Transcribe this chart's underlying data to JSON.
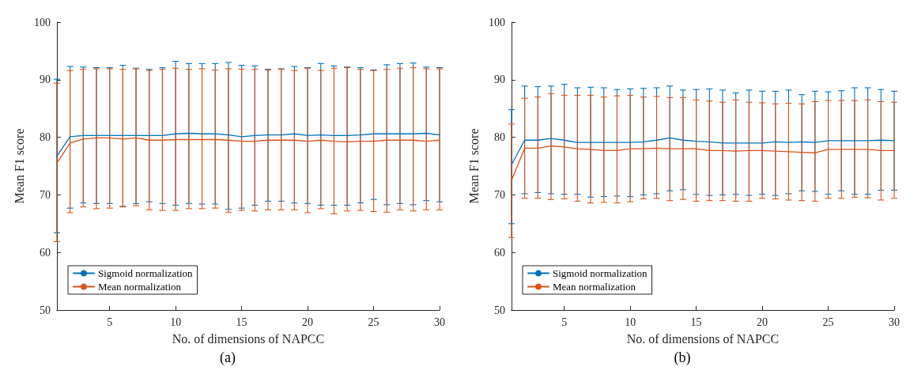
{
  "chart_data": [
    {
      "type": "line",
      "title": "(a)",
      "xlabel": "No. of dimensions of NAPCC",
      "ylabel": "Mean F1 score",
      "x": [
        1,
        2,
        3,
        4,
        5,
        6,
        7,
        8,
        9,
        10,
        11,
        12,
        13,
        14,
        15,
        16,
        17,
        18,
        19,
        20,
        21,
        22,
        23,
        24,
        25,
        26,
        27,
        28,
        29,
        30
      ],
      "series": [
        {
          "name": "Sigmoid normalization",
          "color": "#0072bd",
          "values": [
            76.7,
            80.1,
            80.3,
            80.3,
            80.3,
            80.3,
            80.3,
            80.3,
            80.3,
            80.6,
            80.7,
            80.6,
            80.6,
            80.4,
            80.1,
            80.3,
            80.4,
            80.4,
            80.6,
            80.3,
            80.4,
            80.3,
            80.3,
            80.4,
            80.6,
            80.6,
            80.6,
            80.6,
            80.7,
            80.4
          ],
          "errors": [
            [
              63.4,
              90.1
            ],
            [
              67.7,
              92.3
            ],
            [
              68.6,
              92.2
            ],
            [
              68.5,
              92.1
            ],
            [
              68.5,
              92.1
            ],
            [
              68.0,
              92.5
            ],
            [
              68.5,
              92.0
            ],
            [
              68.8,
              91.8
            ],
            [
              68.5,
              92.1
            ],
            [
              68.2,
              93.2
            ],
            [
              68.5,
              92.8
            ],
            [
              68.4,
              92.8
            ],
            [
              68.4,
              92.8
            ],
            [
              67.5,
              93.0
            ],
            [
              67.7,
              92.5
            ],
            [
              68.2,
              92.4
            ],
            [
              68.9,
              91.8
            ],
            [
              68.9,
              91.9
            ],
            [
              68.6,
              92.3
            ],
            [
              68.5,
              92.1
            ],
            [
              68.2,
              92.8
            ],
            [
              68.2,
              92.4
            ],
            [
              68.2,
              92.2
            ],
            [
              68.6,
              92.1
            ],
            [
              69.2,
              91.7
            ],
            [
              68.3,
              92.6
            ],
            [
              68.5,
              92.8
            ],
            [
              68.3,
              92.9
            ],
            [
              69.0,
              92.2
            ],
            [
              68.8,
              92.1
            ]
          ]
        },
        {
          "name": "Mean normalization",
          "color": "#d95319",
          "values": [
            75.5,
            79.0,
            79.7,
            79.9,
            79.9,
            79.7,
            79.9,
            79.5,
            79.5,
            79.6,
            79.6,
            79.6,
            79.6,
            79.5,
            79.3,
            79.3,
            79.5,
            79.5,
            79.5,
            79.3,
            79.5,
            79.3,
            79.2,
            79.3,
            79.3,
            79.5,
            79.5,
            79.5,
            79.3,
            79.5
          ],
          "errors": [
            [
              61.9,
              89.4
            ],
            [
              66.9,
              91.6
            ],
            [
              67.9,
              91.8
            ],
            [
              67.6,
              91.9
            ],
            [
              67.7,
              91.9
            ],
            [
              67.9,
              91.8
            ],
            [
              68.1,
              91.9
            ],
            [
              67.4,
              91.6
            ],
            [
              67.3,
              91.8
            ],
            [
              67.3,
              92.0
            ],
            [
              67.6,
              91.8
            ],
            [
              67.6,
              91.9
            ],
            [
              67.7,
              91.7
            ],
            [
              67.0,
              91.9
            ],
            [
              67.3,
              91.8
            ],
            [
              67.2,
              91.8
            ],
            [
              67.4,
              91.7
            ],
            [
              67.4,
              91.8
            ],
            [
              67.4,
              91.6
            ],
            [
              66.9,
              92.0
            ],
            [
              67.6,
              91.6
            ],
            [
              66.7,
              92.0
            ],
            [
              67.2,
              92.1
            ],
            [
              67.3,
              91.8
            ],
            [
              67.1,
              91.6
            ],
            [
              67.0,
              91.8
            ],
            [
              67.4,
              92.0
            ],
            [
              67.2,
              92.1
            ],
            [
              67.4,
              91.9
            ],
            [
              67.4,
              91.9
            ]
          ]
        }
      ],
      "xlim": [
        1,
        30
      ],
      "xticks": [
        5,
        10,
        15,
        20,
        25,
        30
      ],
      "ylim": [
        50,
        100
      ],
      "yticks": [
        50,
        60,
        70,
        80,
        90,
        100
      ],
      "grid": false,
      "legend": "bottom left",
      "marker": "none",
      "line_style": "solid"
    },
    {
      "type": "line",
      "title": "(b)",
      "xlabel": "No. of dimensions of NAPCC",
      "ylabel": "Mean F1 score",
      "x": [
        1,
        2,
        3,
        4,
        5,
        6,
        7,
        8,
        9,
        10,
        11,
        12,
        13,
        14,
        15,
        16,
        17,
        18,
        19,
        20,
        21,
        22,
        23,
        24,
        25,
        26,
        27,
        28,
        29,
        30
      ],
      "series": [
        {
          "name": "Sigmoid normalization",
          "color": "#0072bd",
          "values": [
            75.2,
            79.5,
            79.5,
            79.8,
            79.5,
            79.1,
            79.1,
            79.1,
            79.1,
            79.1,
            79.2,
            79.5,
            79.9,
            79.5,
            79.3,
            79.2,
            79.0,
            79.0,
            79.0,
            79.0,
            79.2,
            79.1,
            79.2,
            79.1,
            79.4,
            79.4,
            79.4,
            79.4,
            79.5,
            79.4
          ],
          "errors": [
            [
              65.0,
              84.8
            ],
            [
              70.2,
              88.9
            ],
            [
              70.4,
              88.8
            ],
            [
              70.2,
              88.9
            ],
            [
              70.1,
              89.2
            ],
            [
              70.1,
              88.6
            ],
            [
              69.6,
              88.7
            ],
            [
              69.7,
              88.6
            ],
            [
              69.8,
              88.3
            ],
            [
              69.7,
              88.4
            ],
            [
              70.0,
              88.5
            ],
            [
              70.2,
              88.6
            ],
            [
              70.7,
              88.9
            ],
            [
              70.9,
              88.2
            ],
            [
              70.1,
              88.3
            ],
            [
              69.9,
              88.4
            ],
            [
              70.0,
              88.2
            ],
            [
              70.1,
              87.7
            ],
            [
              69.9,
              88.2
            ],
            [
              70.1,
              88.0
            ],
            [
              69.9,
              88.0
            ],
            [
              70.2,
              88.2
            ],
            [
              70.7,
              87.4
            ],
            [
              70.6,
              88.0
            ],
            [
              70.1,
              87.9
            ],
            [
              70.7,
              88.1
            ],
            [
              70.1,
              88.6
            ],
            [
              70.1,
              88.6
            ],
            [
              70.8,
              88.3
            ],
            [
              70.8,
              88.0
            ]
          ]
        },
        {
          "name": "Mean normalization",
          "color": "#d95319",
          "values": [
            72.5,
            78.1,
            78.1,
            78.5,
            78.3,
            78.0,
            77.9,
            77.7,
            77.7,
            78.0,
            78.0,
            78.1,
            78.0,
            78.0,
            78.0,
            77.7,
            77.7,
            77.6,
            77.7,
            77.7,
            77.6,
            77.5,
            77.4,
            77.3,
            77.9,
            77.9,
            77.9,
            77.9,
            77.7,
            77.7
          ],
          "errors": [
            [
              62.6,
              82.3
            ],
            [
              69.4,
              86.8
            ],
            [
              69.4,
              87.0
            ],
            [
              69.2,
              87.6
            ],
            [
              69.3,
              87.3
            ],
            [
              68.9,
              87.3
            ],
            [
              68.6,
              87.3
            ],
            [
              68.7,
              87.0
            ],
            [
              68.6,
              87.2
            ],
            [
              68.8,
              87.3
            ],
            [
              69.3,
              87.0
            ],
            [
              69.4,
              87.1
            ],
            [
              69.0,
              86.9
            ],
            [
              69.2,
              86.9
            ],
            [
              68.9,
              86.5
            ],
            [
              69.0,
              86.3
            ],
            [
              69.0,
              86.1
            ],
            [
              68.9,
              86.5
            ],
            [
              68.9,
              86.1
            ],
            [
              69.4,
              86.0
            ],
            [
              69.3,
              85.8
            ],
            [
              69.1,
              85.9
            ],
            [
              69.0,
              85.8
            ],
            [
              68.9,
              86.2
            ],
            [
              69.4,
              86.4
            ],
            [
              69.4,
              86.4
            ],
            [
              69.6,
              86.4
            ],
            [
              69.5,
              86.5
            ],
            [
              69.1,
              86.2
            ],
            [
              69.4,
              86.1
            ]
          ]
        }
      ],
      "xlim": [
        1,
        30
      ],
      "xticks": [
        5,
        10,
        15,
        20,
        25,
        30
      ],
      "ylim": [
        50,
        100
      ],
      "yticks": [
        50,
        60,
        70,
        80,
        90,
        100
      ],
      "grid": false,
      "legend": "bottom left",
      "marker": "none",
      "line_style": "solid"
    }
  ]
}
